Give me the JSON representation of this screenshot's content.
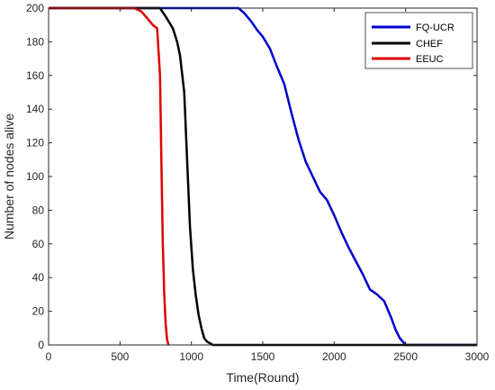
{
  "chart_data": {
    "type": "line",
    "title": "",
    "xlabel": "Time(Round)",
    "ylabel": "Number of nodes alive",
    "xlim": [
      0,
      3000
    ],
    "ylim": [
      0,
      200
    ],
    "xticks": [
      0,
      500,
      1000,
      1500,
      2000,
      2500,
      3000
    ],
    "yticks": [
      0,
      20,
      40,
      60,
      80,
      100,
      120,
      140,
      160,
      180,
      200
    ],
    "xtick_labels": [
      "0",
      "500",
      "1000",
      "1500",
      "2000",
      "2500",
      "3000"
    ],
    "ytick_labels": [
      "0",
      "20",
      "40",
      "60",
      "80",
      "100",
      "120",
      "140",
      "160",
      "180",
      "200"
    ],
    "grid": false,
    "legend_position": "top-right",
    "series": [
      {
        "name": "FQ-UCR",
        "color": "#0000cc",
        "x": [
          0,
          1330,
          1370,
          1420,
          1460,
          1500,
          1550,
          1600,
          1650,
          1700,
          1750,
          1800,
          1850,
          1900,
          1950,
          2000,
          2050,
          2100,
          2150,
          2200,
          2250,
          2300,
          2350,
          2400,
          2430,
          2460,
          2490,
          2500,
          3000
        ],
        "y": [
          200,
          200,
          197,
          192,
          187,
          183,
          176,
          165,
          155,
          138,
          122,
          109,
          100,
          91,
          86,
          77,
          67,
          58,
          50,
          42,
          33,
          30,
          26,
          16,
          9,
          4,
          1,
          0,
          0
        ]
      },
      {
        "name": "CHEF",
        "color": "#000000",
        "x": [
          0,
          780,
          820,
          870,
          900,
          920,
          950,
          970,
          990,
          1010,
          1030,
          1050,
          1070,
          1090,
          1110,
          1130,
          1150,
          3000
        ],
        "y": [
          200,
          200,
          195,
          188,
          180,
          172,
          150,
          110,
          70,
          45,
          30,
          18,
          10,
          4,
          2,
          1,
          0,
          0
        ]
      },
      {
        "name": "EEUC",
        "color": "#dd0000",
        "x": [
          0,
          600,
          650,
          690,
          730,
          760,
          780,
          790,
          800,
          810,
          820,
          830,
          840
        ],
        "y": [
          200,
          200,
          198,
          194,
          190,
          188,
          160,
          110,
          60,
          30,
          12,
          3,
          0
        ]
      }
    ]
  }
}
